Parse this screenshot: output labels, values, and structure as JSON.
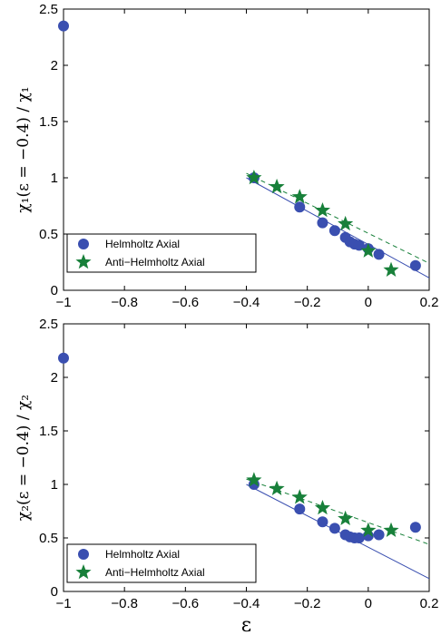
{
  "chart_data": [
    {
      "type": "scatter",
      "title": "",
      "xlabel": "",
      "ylabel": "χ₁(ε = −0.4) / χ₁",
      "xlim": [
        -1,
        0.2
      ],
      "ylim": [
        0,
        2.5
      ],
      "xticks": [
        "−1",
        "−0.8",
        "−0.6",
        "−0.4",
        "−0.2",
        "0",
        "0.2"
      ],
      "yticks": [
        "0",
        "0.5",
        "1",
        "1.5",
        "2",
        "2.5"
      ],
      "legend_position": "bottom-left",
      "grid": false,
      "series": [
        {
          "name": "Helmholtz Axial",
          "marker": "circle",
          "color": "#3a4fb0",
          "x": [
            -1.0,
            -0.375,
            -0.225,
            -0.15,
            -0.11,
            -0.075,
            -0.06,
            -0.045,
            -0.03,
            0.0,
            0.035,
            0.155
          ],
          "y": [
            2.35,
            1.0,
            0.74,
            0.6,
            0.53,
            0.47,
            0.43,
            0.41,
            0.4,
            0.37,
            0.32,
            0.22
          ],
          "fit": {
            "style": "solid",
            "x": [
              -0.4,
              0.2
            ],
            "y": [
              1.0,
              0.11
            ]
          }
        },
        {
          "name": "Anti−Helmholtz Axial",
          "marker": "star",
          "color": "#18803a",
          "x": [
            -0.375,
            -0.3,
            -0.225,
            -0.15,
            -0.075,
            0.0,
            0.075
          ],
          "y": [
            1.0,
            0.92,
            0.83,
            0.71,
            0.59,
            0.35,
            0.18
          ],
          "fit": {
            "style": "dashed",
            "x": [
              -0.4,
              0.2
            ],
            "y": [
              1.04,
              0.24
            ]
          }
        }
      ]
    },
    {
      "type": "scatter",
      "title": "",
      "xlabel": "ε",
      "ylabel": "χ₂(ε = −0.4) / χ₂",
      "xlim": [
        -1,
        0.2
      ],
      "ylim": [
        0,
        2.5
      ],
      "xticks": [
        "−1",
        "−0.8",
        "−0.6",
        "−0.4",
        "−0.2",
        "0",
        "0.2"
      ],
      "yticks": [
        "0",
        "0.5",
        "1",
        "1.5",
        "2",
        "2.5"
      ],
      "legend_position": "bottom-left",
      "grid": false,
      "series": [
        {
          "name": "Helmholtz Axial",
          "marker": "circle",
          "color": "#3a4fb0",
          "x": [
            -1.0,
            -0.375,
            -0.225,
            -0.15,
            -0.11,
            -0.075,
            -0.06,
            -0.045,
            -0.03,
            0.0,
            0.035,
            0.155
          ],
          "y": [
            2.18,
            1.0,
            0.77,
            0.65,
            0.59,
            0.53,
            0.51,
            0.5,
            0.5,
            0.52,
            0.53,
            0.6
          ],
          "fit": {
            "style": "solid",
            "x": [
              -0.4,
              0.2
            ],
            "y": [
              1.0,
              0.12
            ]
          }
        },
        {
          "name": "Anti−Helmholtz Axial",
          "marker": "star",
          "color": "#18803a",
          "x": [
            -0.375,
            -0.3,
            -0.225,
            -0.15,
            -0.075,
            0.0,
            0.075
          ],
          "y": [
            1.04,
            0.96,
            0.88,
            0.78,
            0.68,
            0.57,
            0.57
          ],
          "fit": {
            "style": "dashed",
            "x": [
              -0.4,
              0.2
            ],
            "y": [
              1.05,
              0.44
            ]
          }
        }
      ]
    }
  ]
}
